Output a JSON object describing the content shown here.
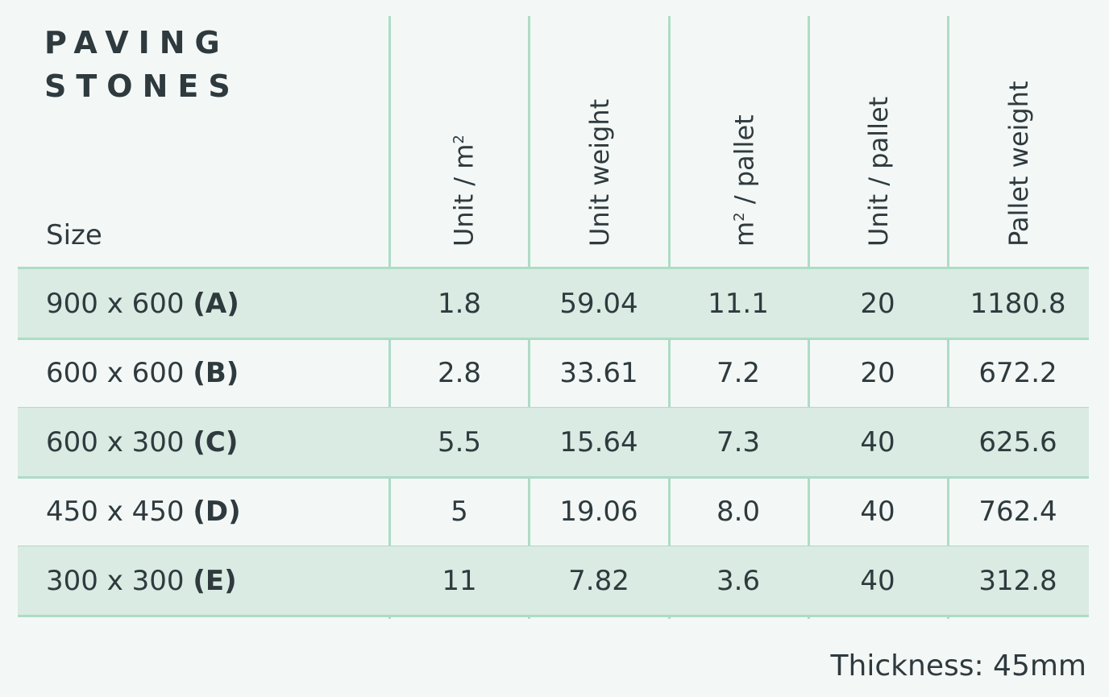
{
  "title": {
    "line1": "PAVING",
    "line2": "STONES"
  },
  "header": {
    "size": "Size",
    "columns": [
      {
        "text": "Unit / m",
        "sup": "2"
      },
      {
        "text": "Unit weight",
        "sup": ""
      },
      {
        "text": " / pallet",
        "pre": "m",
        "sup": "2"
      },
      {
        "text": "Unit / pallet",
        "sup": ""
      },
      {
        "text": "Pallet weight",
        "sup": ""
      }
    ]
  },
  "rows": [
    {
      "size": "900 x 600",
      "code": "(A)",
      "values": [
        "1.8",
        "59.04",
        "11.1",
        "20",
        "1180.8"
      ]
    },
    {
      "size": "600 x 600",
      "code": "(B)",
      "values": [
        "2.8",
        "33.61",
        "7.2",
        "20",
        "672.2"
      ]
    },
    {
      "size": "600 x 300",
      "code": "(C)",
      "values": [
        "5.5",
        "15.64",
        "7.3",
        "40",
        "625.6"
      ]
    },
    {
      "size": "450 x 450",
      "code": "(D)",
      "values": [
        "5",
        "19.06",
        "8.0",
        "40",
        "762.4"
      ]
    },
    {
      "size": "300 x 300",
      "code": "(E)",
      "values": [
        "11",
        "7.82",
        "3.6",
        "40",
        "312.8"
      ]
    }
  ],
  "footer": "Thickness: 45mm",
  "colors": {
    "background": "#f3f8f6",
    "row_shade": "#d9ebe2",
    "line": "#aedbc7",
    "text": "#2f3a3e"
  }
}
